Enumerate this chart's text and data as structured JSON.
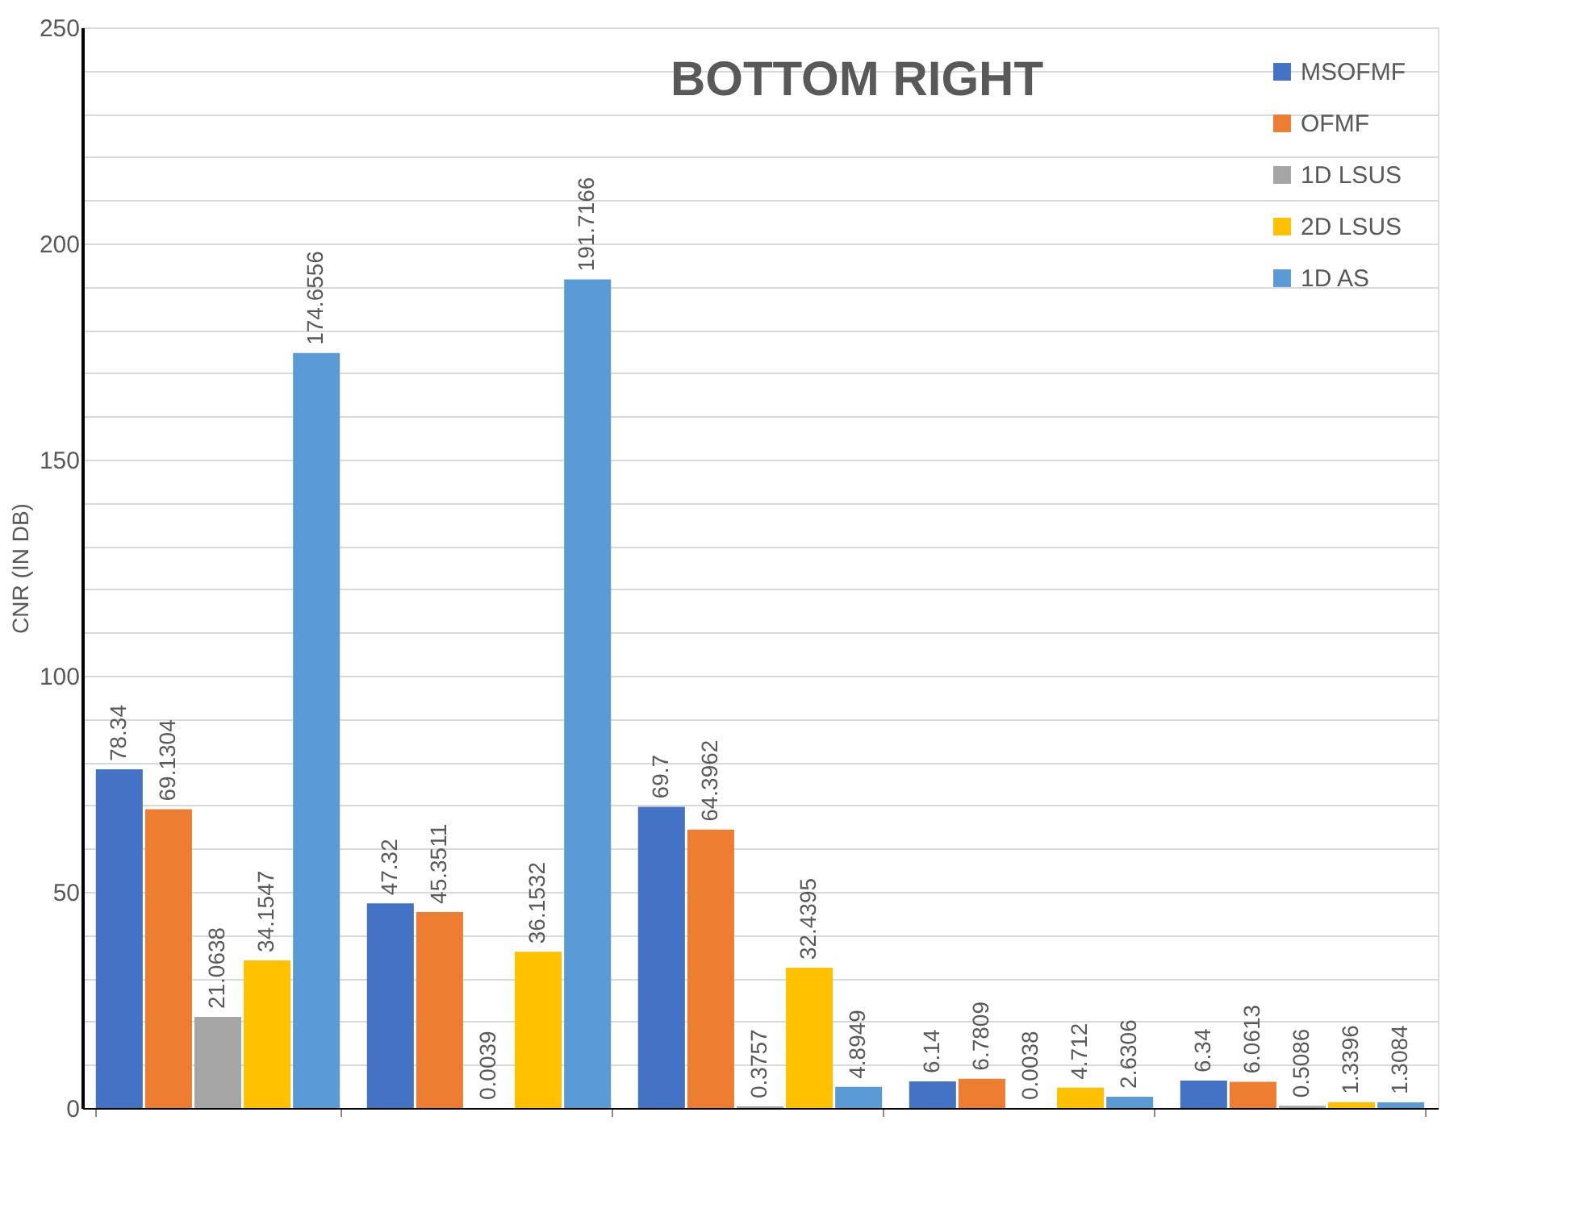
{
  "chart_data": {
    "type": "bar",
    "title": "BOTTOM RIGHT",
    "ylabel": "CNR (IN DB)",
    "categories": [
      null,
      null,
      null,
      null,
      null
    ],
    "series": [
      {
        "name": "MSOFMF",
        "color": "#4472c4",
        "values": [
          78.34,
          47.32,
          69.7,
          6.14,
          6.34
        ]
      },
      {
        "name": "OFMF",
        "color": "#ed7d31",
        "values": [
          69.1304,
          45.3511,
          64.3962,
          6.7809,
          6.0613
        ]
      },
      {
        "name": "1D LSUS",
        "color": "#a5a5a5",
        "values": [
          21.0638,
          0.0039,
          0.3757,
          0.0038,
          0.5086
        ]
      },
      {
        "name": "2D LSUS",
        "color": "#ffc000",
        "values": [
          34.1547,
          36.1532,
          32.4395,
          4.712,
          1.3396
        ]
      },
      {
        "name": "1D AS",
        "color": "#5b9bd5",
        "values": [
          174.6556,
          191.7166,
          4.8949,
          2.6306,
          1.3084
        ]
      }
    ],
    "ylim": [
      0,
      250
    ],
    "yticks": [
      0,
      {
        "value": 10,
        "label": null
      },
      {
        "value": 20,
        "label": null
      },
      {
        "value": 30,
        "label": null
      },
      {
        "value": 40,
        "label": null
      },
      50,
      {
        "value": 60,
        "label": null
      },
      {
        "value": 70,
        "label": null
      },
      {
        "value": 80,
        "label": null
      },
      {
        "value": 90,
        "label": null
      },
      100,
      {
        "value": 110,
        "label": null
      },
      {
        "value": 120,
        "label": null
      },
      {
        "value": 130,
        "label": null
      },
      {
        "value": 140,
        "label": null
      },
      150,
      {
        "value": 160,
        "label": null
      },
      {
        "value": 170,
        "label": null
      },
      {
        "value": 180,
        "label": null
      },
      {
        "value": 190,
        "label": null
      },
      200,
      {
        "value": 210,
        "label": null
      },
      {
        "value": 220,
        "label": null
      },
      {
        "value": 230,
        "label": null
      },
      {
        "value": 240,
        "label": null
      },
      250
    ],
    "grid": "y",
    "legend": "top right",
    "data_labels": true,
    "tick_labels": "y"
  }
}
